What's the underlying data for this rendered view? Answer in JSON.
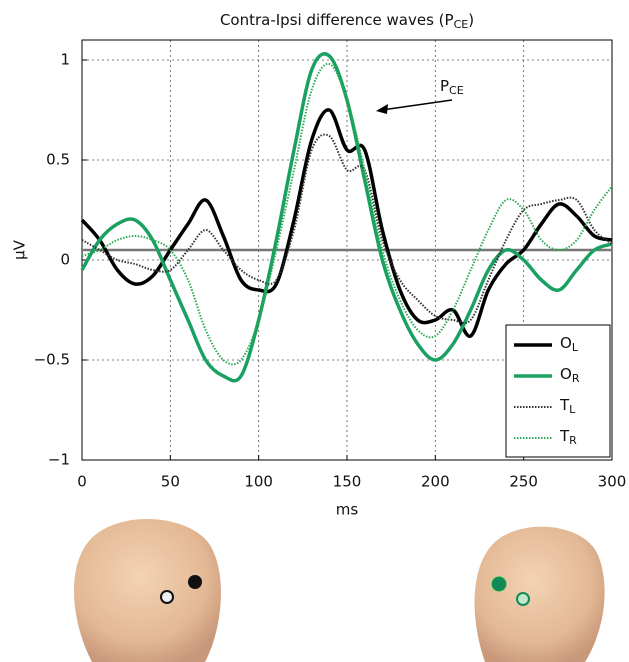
{
  "chart_data": {
    "type": "line",
    "title": [
      "Contra-Ipsi difference waves (P",
      "CE",
      ")"
    ],
    "annotation": [
      "P",
      "CE"
    ],
    "xlabel": "ms",
    "ylabel": "μV",
    "x": [
      0,
      10,
      20,
      30,
      40,
      50,
      60,
      70,
      80,
      90,
      100,
      110,
      120,
      130,
      140,
      150,
      160,
      170,
      180,
      190,
      200,
      210,
      220,
      230,
      240,
      250,
      260,
      270,
      280,
      290,
      300
    ],
    "series": [
      {
        "name": [
          "O",
          "L"
        ],
        "color": "#000000",
        "style": "solid",
        "values": [
          0.2,
          0.1,
          -0.05,
          -0.12,
          -0.08,
          0.05,
          0.18,
          0.3,
          0.12,
          -0.1,
          -0.15,
          -0.12,
          0.2,
          0.6,
          0.75,
          0.55,
          0.55,
          0.15,
          -0.15,
          -0.3,
          -0.3,
          -0.25,
          -0.38,
          -0.15,
          -0.02,
          0.05,
          0.18,
          0.28,
          0.22,
          0.12,
          0.1
        ]
      },
      {
        "name": [
          "O",
          "R"
        ],
        "color": "#1aa060",
        "style": "solid",
        "values": [
          -0.05,
          0.1,
          0.18,
          0.2,
          0.1,
          -0.1,
          -0.3,
          -0.5,
          -0.58,
          -0.58,
          -0.3,
          0.1,
          0.55,
          0.95,
          1.02,
          0.8,
          0.4,
          0,
          -0.25,
          -0.42,
          -0.5,
          -0.42,
          -0.25,
          -0.05,
          0.05,
          0,
          -0.1,
          -0.15,
          -0.05,
          0.05,
          0.08
        ]
      },
      {
        "name": [
          "T",
          "L"
        ],
        "color": "#333333",
        "style": "dotted",
        "values": [
          0.1,
          0.05,
          0,
          -0.02,
          -0.05,
          -0.05,
          0.05,
          0.15,
          0.05,
          -0.05,
          -0.1,
          -0.1,
          0.15,
          0.55,
          0.62,
          0.45,
          0.45,
          0.1,
          -0.1,
          -0.2,
          -0.28,
          -0.3,
          -0.3,
          -0.1,
          0.1,
          0.25,
          0.28,
          0.3,
          0.3,
          0.15,
          0.08
        ]
      },
      {
        "name": [
          "T",
          "R"
        ],
        "color": "#2aaa55",
        "style": "dotted",
        "values": [
          0.02,
          0.05,
          0.1,
          0.12,
          0.1,
          0.05,
          -0.1,
          -0.35,
          -0.5,
          -0.5,
          -0.3,
          0.05,
          0.45,
          0.85,
          0.98,
          0.8,
          0.45,
          0.05,
          -0.2,
          -0.35,
          -0.38,
          -0.25,
          -0.05,
          0.15,
          0.3,
          0.25,
          0.1,
          0.05,
          0.1,
          0.25,
          0.37
        ]
      }
    ],
    "reference_line": 0.05,
    "xlim": [
      0,
      300
    ],
    "xticks": [
      0,
      50,
      100,
      150,
      200,
      250,
      300
    ],
    "ylim": [
      -1,
      1.1
    ],
    "yticks": [
      {
        "value": -1,
        "label": "−1"
      },
      {
        "value": -0.5,
        "label": "−0.5"
      },
      0,
      0.5,
      1
    ],
    "grid": true,
    "legend": "lower right"
  }
}
